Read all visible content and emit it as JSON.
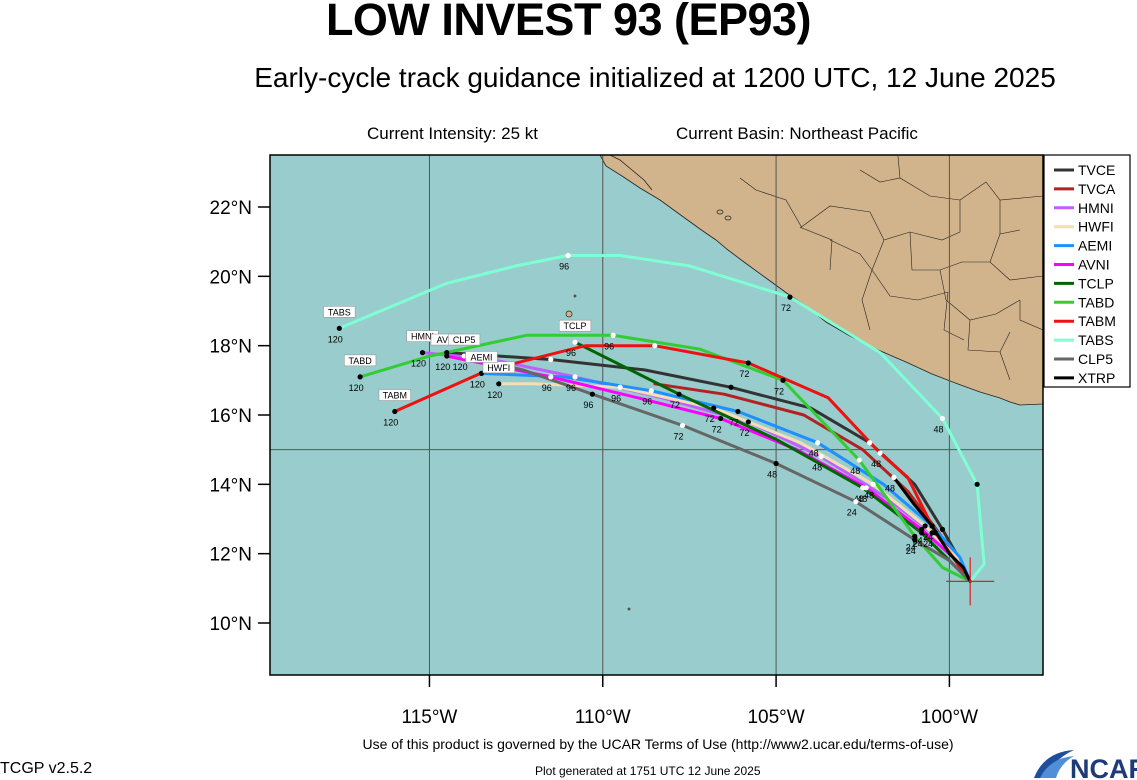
{
  "header": {
    "title": "LOW INVEST 93 (EP93)",
    "subtitle": "Early-cycle track guidance initialized at 1200 UTC, 12 June 2025",
    "intensity": "Current Intensity: 25 kt",
    "basin": "Current Basin: Northeast Pacific"
  },
  "footer": {
    "terms": "Use of this product is governed by the UCAR Terms of Use (http://www2.ucar.edu/terms-of-use)",
    "version": "TCGP v2.5.2",
    "generated": "Plot generated at 1751 UTC   12 June 2025",
    "logo_text": "NCAR"
  },
  "map": {
    "lon_range": [
      -119.6,
      -97.3
    ],
    "lat_range": [
      8.5,
      23.5
    ],
    "lat_ticks": [
      {
        "value": 10,
        "label": "10°N"
      },
      {
        "value": 12,
        "label": "12°N"
      },
      {
        "value": 14,
        "label": "14°N"
      },
      {
        "value": 16,
        "label": "16°N"
      },
      {
        "value": 18,
        "label": "18°N"
      },
      {
        "value": 20,
        "label": "20°N"
      },
      {
        "value": 22,
        "label": "22°N"
      }
    ],
    "lon_ticks": [
      {
        "value": -115,
        "label": "115°W"
      },
      {
        "value": -110,
        "label": "110°W"
      },
      {
        "value": -105,
        "label": "105°W"
      },
      {
        "value": -100,
        "label": "100°W"
      }
    ],
    "grid_lons": [
      -115,
      -110,
      -105,
      -100
    ],
    "grid_lats": [
      15
    ],
    "ocean_color": "#99cccc",
    "land_color": "#d2b48c",
    "grid_color": "#555555",
    "initial_position": {
      "lon": -99.4,
      "lat": 11.2
    }
  },
  "legend": [
    {
      "name": "TVCE",
      "color": "#333333"
    },
    {
      "name": "TVCA",
      "color": "#b22222"
    },
    {
      "name": "HMNI",
      "color": "#bf5fff"
    },
    {
      "name": "HWFI",
      "color": "#f5deb3"
    },
    {
      "name": "AEMI",
      "color": "#1e90ff"
    },
    {
      "name": "AVNI",
      "color": "#ff00ff"
    },
    {
      "name": "TCLP",
      "color": "#006400"
    },
    {
      "name": "TABD",
      "color": "#32cd32"
    },
    {
      "name": "TABM",
      "color": "#ee1111"
    },
    {
      "name": "TABS",
      "color": "#7fffd4"
    },
    {
      "name": "CLP5",
      "color": "#666666"
    },
    {
      "name": "XTRP",
      "color": "#000000"
    }
  ],
  "chart_data": {
    "type": "line",
    "title": "LOW INVEST 93 (EP93)",
    "xlabel": "",
    "ylabel": "",
    "xlim": [
      -119.6,
      -97.3
    ],
    "ylim": [
      8.5,
      23.5
    ],
    "series": [
      {
        "name": "TVCE",
        "color": "#333333",
        "end_label": "",
        "points": [
          [
            -99.4,
            11.2
          ],
          [
            -99.8,
            12.0
          ],
          [
            -100.2,
            12.7
          ],
          [
            -101.0,
            14.0
          ],
          [
            -102.3,
            15.2
          ],
          [
            -104.0,
            16.2
          ],
          [
            -106.3,
            16.8
          ],
          [
            -108.8,
            17.3
          ],
          [
            -111.5,
            17.6
          ],
          [
            -114.5,
            17.8
          ]
        ],
        "marks": [
          [
            -100.2,
            12.7,
            ""
          ],
          [
            -102.3,
            15.2,
            ""
          ],
          [
            -106.3,
            16.8,
            ""
          ],
          [
            -111.5,
            17.6,
            ""
          ],
          [
            -114.5,
            17.8,
            ""
          ]
        ]
      },
      {
        "name": "TVCA",
        "color": "#b22222",
        "end_label": "",
        "points": [
          [
            -99.4,
            11.2
          ],
          [
            -99.9,
            12.0
          ],
          [
            -100.3,
            12.6
          ],
          [
            -101.2,
            13.8
          ],
          [
            -102.5,
            15.0
          ],
          [
            -104.2,
            16.0
          ],
          [
            -106.5,
            16.6
          ],
          [
            -108.5,
            16.9
          ]
        ],
        "marks": []
      },
      {
        "name": "HMNI",
        "color": "#bf5fff",
        "end_label": "HMNI",
        "points": [
          [
            -99.4,
            11.2
          ],
          [
            -99.7,
            11.8
          ],
          [
            -100.5,
            12.6
          ],
          [
            -101.8,
            13.6
          ],
          [
            -103.7,
            14.8
          ],
          [
            -105.8,
            15.8
          ],
          [
            -108.3,
            16.5
          ],
          [
            -110.8,
            17.1
          ],
          [
            -113.2,
            17.6
          ],
          [
            -115.2,
            17.8
          ]
        ],
        "marks": [
          [
            -100.5,
            12.6,
            "24"
          ],
          [
            -103.7,
            14.8,
            "48"
          ],
          [
            -105.8,
            15.8,
            "72"
          ],
          [
            -110.8,
            17.1,
            "96"
          ],
          [
            -115.2,
            17.8,
            "120"
          ]
        ]
      },
      {
        "name": "HWFI",
        "color": "#f5deb3",
        "end_label": "HWFI",
        "points": [
          [
            -99.4,
            11.2
          ],
          [
            -99.8,
            11.9
          ],
          [
            -100.7,
            12.8
          ],
          [
            -102.2,
            14.0
          ],
          [
            -104.3,
            15.2
          ],
          [
            -106.8,
            16.2
          ],
          [
            -109.5,
            16.8
          ],
          [
            -112.0,
            16.9
          ],
          [
            -113.0,
            16.9
          ]
        ],
        "marks": [
          [
            -100.7,
            12.8,
            ""
          ],
          [
            -102.2,
            14.0,
            "48"
          ],
          [
            -106.8,
            16.2,
            "72"
          ],
          [
            -109.5,
            16.8,
            "96"
          ],
          [
            -113.0,
            16.9,
            "120"
          ]
        ]
      },
      {
        "name": "AEMI",
        "color": "#1e90ff",
        "end_label": "AEMI",
        "points": [
          [
            -99.4,
            11.2
          ],
          [
            -99.7,
            11.9
          ],
          [
            -100.5,
            12.8
          ],
          [
            -101.9,
            14.0
          ],
          [
            -103.8,
            15.2
          ],
          [
            -106.1,
            16.1
          ],
          [
            -108.6,
            16.7
          ],
          [
            -111.1,
            17.1
          ],
          [
            -113.5,
            17.2
          ]
        ],
        "marks": [
          [
            -100.5,
            12.8,
            "24"
          ],
          [
            -103.8,
            15.2,
            "48"
          ],
          [
            -106.1,
            16.1,
            "72"
          ],
          [
            -108.6,
            16.7,
            "96"
          ],
          [
            -113.5,
            17.2,
            "120"
          ]
        ]
      },
      {
        "name": "AVNI",
        "color": "#ff00ff",
        "end_label": "AVNI",
        "points": [
          [
            -99.4,
            11.2
          ],
          [
            -99.9,
            11.9
          ],
          [
            -100.8,
            12.7
          ],
          [
            -102.4,
            13.9
          ],
          [
            -104.4,
            15.0
          ],
          [
            -106.6,
            15.9
          ],
          [
            -109.0,
            16.5
          ],
          [
            -111.5,
            17.1
          ],
          [
            -114.5,
            17.7
          ]
        ],
        "marks": [
          [
            -100.8,
            12.7,
            "24"
          ],
          [
            -102.4,
            13.9,
            "48"
          ],
          [
            -106.6,
            15.9,
            "72"
          ],
          [
            -111.5,
            17.1,
            "96"
          ],
          [
            -114.5,
            17.7,
            "120"
          ]
        ]
      },
      {
        "name": "TCLP",
        "color": "#006400",
        "end_label": "TCLP",
        "points": [
          [
            -99.4,
            11.2
          ],
          [
            -100.0,
            11.8
          ],
          [
            -100.8,
            12.6
          ],
          [
            -102.5,
            13.9
          ],
          [
            -105.0,
            15.3
          ],
          [
            -107.8,
            16.6
          ],
          [
            -110.8,
            18.1
          ]
        ],
        "marks": [
          [
            -100.8,
            12.6,
            "24"
          ],
          [
            -102.5,
            13.9,
            "48"
          ],
          [
            -107.8,
            16.6,
            "72"
          ],
          [
            -110.8,
            18.1,
            "96"
          ]
        ]
      },
      {
        "name": "TABD",
        "color": "#32cd32",
        "end_label": "TABD",
        "points": [
          [
            -99.4,
            11.2
          ],
          [
            -100.2,
            11.6
          ],
          [
            -101.0,
            12.5
          ],
          [
            -102.6,
            14.7
          ],
          [
            -104.8,
            17.0
          ],
          [
            -107.2,
            17.9
          ],
          [
            -109.7,
            18.3
          ],
          [
            -112.2,
            18.3
          ],
          [
            -115.0,
            17.7
          ],
          [
            -117.0,
            17.1
          ]
        ],
        "marks": [
          [
            -101.0,
            12.5,
            "24"
          ],
          [
            -102.6,
            14.7,
            "48"
          ],
          [
            -104.8,
            17.0,
            "72"
          ],
          [
            -109.7,
            18.3,
            "96"
          ],
          [
            -117.0,
            17.1,
            "120"
          ]
        ]
      },
      {
        "name": "TABM",
        "color": "#ee1111",
        "end_label": "TABM",
        "points": [
          [
            -99.4,
            11.2
          ],
          [
            -100.4,
            12.6
          ],
          [
            -101.2,
            14.2
          ],
          [
            -102.0,
            14.9
          ],
          [
            -103.5,
            16.5
          ],
          [
            -105.8,
            17.5
          ],
          [
            -108.5,
            18.0
          ],
          [
            -110.5,
            18.0
          ],
          [
            -113.3,
            17.3
          ],
          [
            -116.0,
            16.1
          ]
        ],
        "marks": [
          [
            -100.4,
            12.6,
            ""
          ],
          [
            -102.0,
            14.9,
            "48"
          ],
          [
            -105.8,
            17.5,
            "72"
          ],
          [
            -108.5,
            18.0,
            ""
          ],
          [
            -116.0,
            16.1,
            "120"
          ]
        ]
      },
      {
        "name": "TABS",
        "color": "#7fffd4",
        "end_label": "TABS",
        "points": [
          [
            -99.4,
            11.2
          ],
          [
            -99.0,
            11.7
          ],
          [
            -99.2,
            14.0
          ],
          [
            -100.2,
            15.9
          ],
          [
            -102.0,
            17.8
          ],
          [
            -104.6,
            19.4
          ],
          [
            -107.5,
            20.3
          ],
          [
            -109.5,
            20.6
          ],
          [
            -111.0,
            20.6
          ],
          [
            -112.5,
            20.3
          ],
          [
            -114.5,
            19.8
          ],
          [
            -117.6,
            18.5
          ]
        ],
        "marks": [
          [
            -99.2,
            14.0,
            ""
          ],
          [
            -100.2,
            15.9,
            "48"
          ],
          [
            -104.6,
            19.4,
            "72"
          ],
          [
            -111.0,
            20.6,
            "96"
          ],
          [
            -117.6,
            18.5,
            "120"
          ]
        ]
      },
      {
        "name": "CLP5",
        "color": "#666666",
        "end_label": "CLP5",
        "points": [
          [
            -99.4,
            11.2
          ],
          [
            -100.0,
            11.8
          ],
          [
            -101.0,
            12.4
          ],
          [
            -102.7,
            13.5
          ],
          [
            -105.0,
            14.6
          ],
          [
            -107.7,
            15.7
          ],
          [
            -110.3,
            16.6
          ],
          [
            -112.3,
            17.3
          ],
          [
            -114.0,
            17.7
          ]
        ],
        "marks": [
          [
            -101.0,
            12.4,
            "24"
          ],
          [
            -102.7,
            13.5,
            "24"
          ],
          [
            -105.0,
            14.6,
            "48"
          ],
          [
            -107.7,
            15.7,
            "72"
          ],
          [
            -110.3,
            16.6,
            "96"
          ],
          [
            -114.0,
            17.7,
            "120"
          ]
        ]
      },
      {
        "name": "XTRP",
        "color": "#000000",
        "end_label": "",
        "points": [
          [
            -99.4,
            11.2
          ],
          [
            -99.6,
            11.6
          ],
          [
            -100.0,
            12.0
          ],
          [
            -100.5,
            12.8
          ],
          [
            -101.0,
            13.4
          ],
          [
            -101.6,
            14.2
          ]
        ],
        "marks": [
          [
            -100.5,
            12.8,
            "24"
          ],
          [
            -101.6,
            14.2,
            "48"
          ]
        ]
      }
    ]
  }
}
